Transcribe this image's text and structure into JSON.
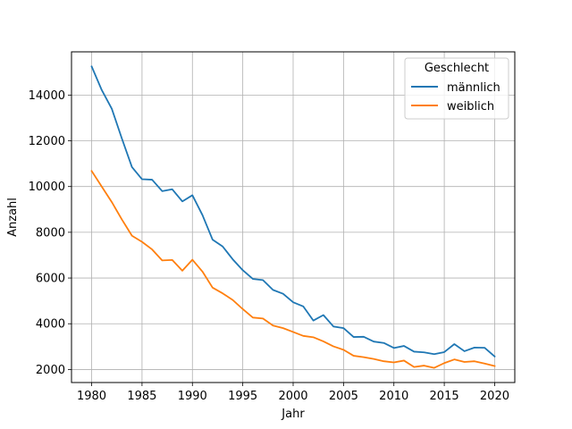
{
  "chart_data": {
    "type": "line",
    "xlabel": "Jahr",
    "ylabel": "Anzahl",
    "xlim": [
      1978,
      2022
    ],
    "ylim": [
      1430,
      15890
    ],
    "xticks": [
      1980,
      1985,
      1990,
      1995,
      2000,
      2005,
      2010,
      2015,
      2020
    ],
    "yticks": [
      2000,
      4000,
      6000,
      8000,
      10000,
      12000,
      14000
    ],
    "grid": true,
    "legend": {
      "title": "Geschlecht",
      "placement": "top-right"
    },
    "x": [
      1980,
      1981,
      1982,
      1983,
      1984,
      1985,
      1986,
      1987,
      1988,
      1989,
      1990,
      1991,
      1992,
      1993,
      1994,
      1995,
      1996,
      1997,
      1998,
      1999,
      2000,
      2001,
      2002,
      2003,
      2004,
      2005,
      2006,
      2007,
      2008,
      2009,
      2010,
      2011,
      2012,
      2013,
      2014,
      2015,
      2016,
      2017,
      2018,
      2019,
      2020
    ],
    "series": [
      {
        "name": "männlich",
        "color": "#1f77b4",
        "values": [
          15250,
          14220,
          13400,
          12100,
          10850,
          10320,
          10300,
          9800,
          9880,
          9350,
          9620,
          8750,
          7680,
          7380,
          6820,
          6340,
          5960,
          5910,
          5480,
          5310,
          4940,
          4760,
          4140,
          4380,
          3880,
          3810,
          3420,
          3430,
          3220,
          3160,
          2940,
          3030,
          2780,
          2750,
          2670,
          2760,
          3110,
          2800,
          2960,
          2950,
          2570
        ]
      },
      {
        "name": "weiblich",
        "color": "#ff7f0e",
        "values": [
          10680,
          10000,
          9320,
          8560,
          7850,
          7580,
          7250,
          6770,
          6790,
          6320,
          6800,
          6280,
          5580,
          5330,
          5040,
          4640,
          4270,
          4230,
          3920,
          3810,
          3640,
          3470,
          3410,
          3230,
          3010,
          2860,
          2600,
          2540,
          2460,
          2360,
          2310,
          2390,
          2110,
          2170,
          2070,
          2280,
          2440,
          2330,
          2360,
          2260,
          2150
        ]
      }
    ]
  }
}
